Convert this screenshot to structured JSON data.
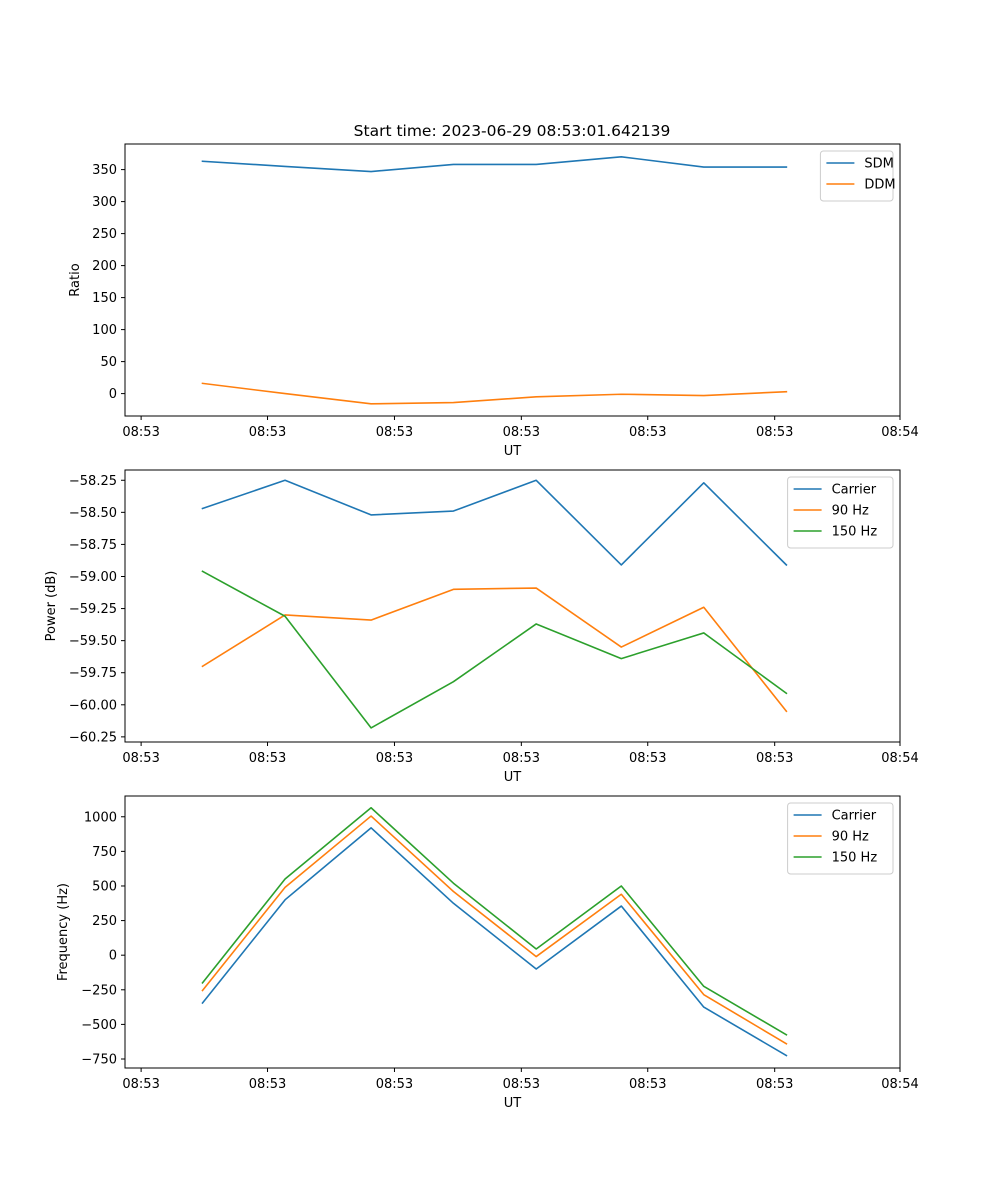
{
  "title": "Start time: 2023-06-29 08:53:01.642139",
  "chart_data": [
    {
      "type": "line",
      "ylabel": "Ratio",
      "xlabel": "UT",
      "x_tick_labels": [
        "08:53",
        "08:53",
        "08:53",
        "08:53",
        "08:53",
        "08:53",
        "08:54"
      ],
      "y_ticks": [
        0,
        50,
        100,
        150,
        200,
        250,
        300,
        350
      ],
      "ylim": [
        -35,
        390
      ],
      "legend_position": "upper right",
      "grid": false,
      "series": [
        {
          "name": "SDM",
          "color": "#1f77b4",
          "values": [
            363,
            355,
            347,
            358,
            358,
            370,
            354,
            354
          ]
        },
        {
          "name": "DDM",
          "color": "#ff7f0e",
          "values": [
            16,
            0,
            -16,
            -14,
            -5,
            -1,
            -3,
            3
          ]
        }
      ]
    },
    {
      "type": "line",
      "ylabel": "Power (dB)",
      "xlabel": "UT",
      "x_tick_labels": [
        "08:53",
        "08:53",
        "08:53",
        "08:53",
        "08:53",
        "08:53",
        "08:54"
      ],
      "y_ticks": [
        -60.25,
        -60.0,
        -59.75,
        -59.5,
        -59.25,
        -59.0,
        -58.75,
        -58.5,
        -58.25
      ],
      "y_tick_labels": [
        "−60.25",
        "−60.00",
        "−59.75",
        "−59.50",
        "−59.25",
        "−59.00",
        "−58.75",
        "−58.50",
        "−58.25"
      ],
      "ylim": [
        -60.29,
        -58.17
      ],
      "legend_position": "upper right",
      "grid": false,
      "series": [
        {
          "name": "Carrier",
          "color": "#1f77b4",
          "values": [
            -58.47,
            -58.25,
            -58.52,
            -58.49,
            -58.25,
            -58.91,
            -58.27,
            -58.91
          ]
        },
        {
          "name": "90 Hz",
          "color": "#ff7f0e",
          "values": [
            -59.7,
            -59.3,
            -59.34,
            -59.1,
            -59.09,
            -59.55,
            -59.24,
            -60.05
          ]
        },
        {
          "name": "150 Hz",
          "color": "#2ca02c",
          "values": [
            -58.96,
            -59.31,
            -60.18,
            -59.82,
            -59.37,
            -59.64,
            -59.44,
            -59.91
          ]
        }
      ]
    },
    {
      "type": "line",
      "ylabel": "Frequency (Hz)",
      "xlabel": "UT",
      "x_tick_labels": [
        "08:53",
        "08:53",
        "08:53",
        "08:53",
        "08:53",
        "08:53",
        "08:54"
      ],
      "y_ticks": [
        -750,
        -500,
        -250,
        0,
        250,
        500,
        750,
        1000
      ],
      "y_tick_labels": [
        "−750",
        "−500",
        "−250",
        "0",
        "250",
        "500",
        "750",
        "1000"
      ],
      "ylim": [
        -815,
        1150
      ],
      "legend_position": "upper right",
      "grid": false,
      "series": [
        {
          "name": "Carrier",
          "color": "#1f77b4",
          "values": [
            -345,
            400,
            920,
            375,
            -100,
            355,
            -375,
            -725
          ]
        },
        {
          "name": "90 Hz",
          "color": "#ff7f0e",
          "values": [
            -255,
            490,
            1005,
            460,
            -10,
            440,
            -285,
            -640
          ]
        },
        {
          "name": "150 Hz",
          "color": "#2ca02c",
          "values": [
            -200,
            550,
            1065,
            520,
            45,
            500,
            -225,
            -575
          ]
        }
      ]
    }
  ]
}
